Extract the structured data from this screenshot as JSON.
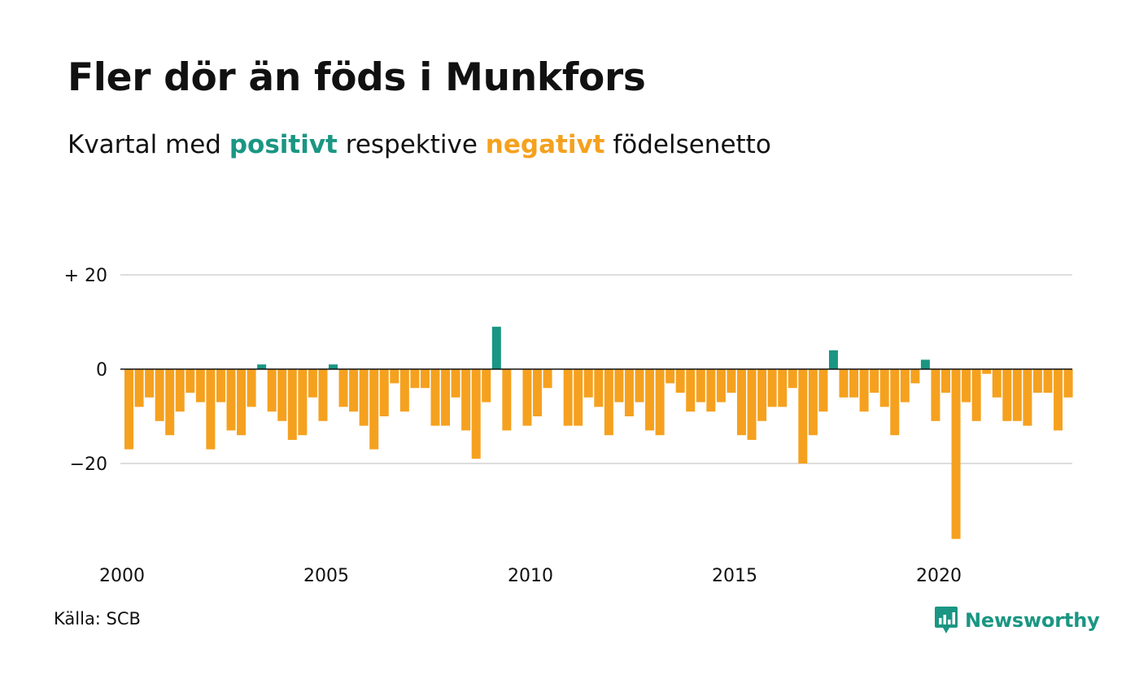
{
  "title": "Fler dör än föds i Munkfors",
  "subtitle": {
    "prefix": "Kvartal med",
    "positive_word": "positivt",
    "middle": "respektive",
    "negative_word": "negativt",
    "suffix": "födelsenetto"
  },
  "source": "Källa: SCB",
  "logo": {
    "text": "Newsworthy",
    "icon": "newsworthy-chart-bubble-icon"
  },
  "colors": {
    "positive": "#1a9683",
    "negative": "#f5a11f",
    "grid": "#dddddd",
    "zero": "#111111"
  },
  "chart_data": {
    "type": "bar",
    "xlabel": "",
    "ylabel": "",
    "ylim": [
      -38,
      20
    ],
    "y_ticks": [
      {
        "value": 20,
        "label": "+ 20"
      },
      {
        "value": 0,
        "label": "0"
      },
      {
        "value": -20,
        "label": "−20"
      }
    ],
    "x_ticks": [
      "2000",
      "2005",
      "2010",
      "2015",
      "2020"
    ],
    "start_year": 2000,
    "grid": true,
    "values": [
      -17,
      -8,
      -6,
      -11,
      -14,
      -9,
      -5,
      -7,
      -17,
      -7,
      -13,
      -14,
      -8,
      1,
      -9,
      -11,
      -15,
      -14,
      -6,
      -11,
      1,
      -8,
      -9,
      -12,
      -17,
      -10,
      -3,
      -9,
      -4,
      -4,
      -12,
      -12,
      -6,
      -13,
      -19,
      -7,
      9,
      -13,
      0,
      -12,
      -10,
      -4,
      0,
      -12,
      -12,
      -6,
      -8,
      -14,
      -7,
      -10,
      -7,
      -13,
      -14,
      -3,
      -5,
      -9,
      -7,
      -9,
      -7,
      -5,
      -14,
      -15,
      -11,
      -8,
      -8,
      -4,
      -20,
      -14,
      -9,
      4,
      -6,
      -6,
      -9,
      -5,
      -8,
      -14,
      -7,
      -3,
      2,
      -11,
      -5,
      -36,
      -7,
      -11,
      -1,
      -6,
      -11,
      -11,
      -12,
      -5,
      -5,
      -13,
      -6
    ]
  }
}
